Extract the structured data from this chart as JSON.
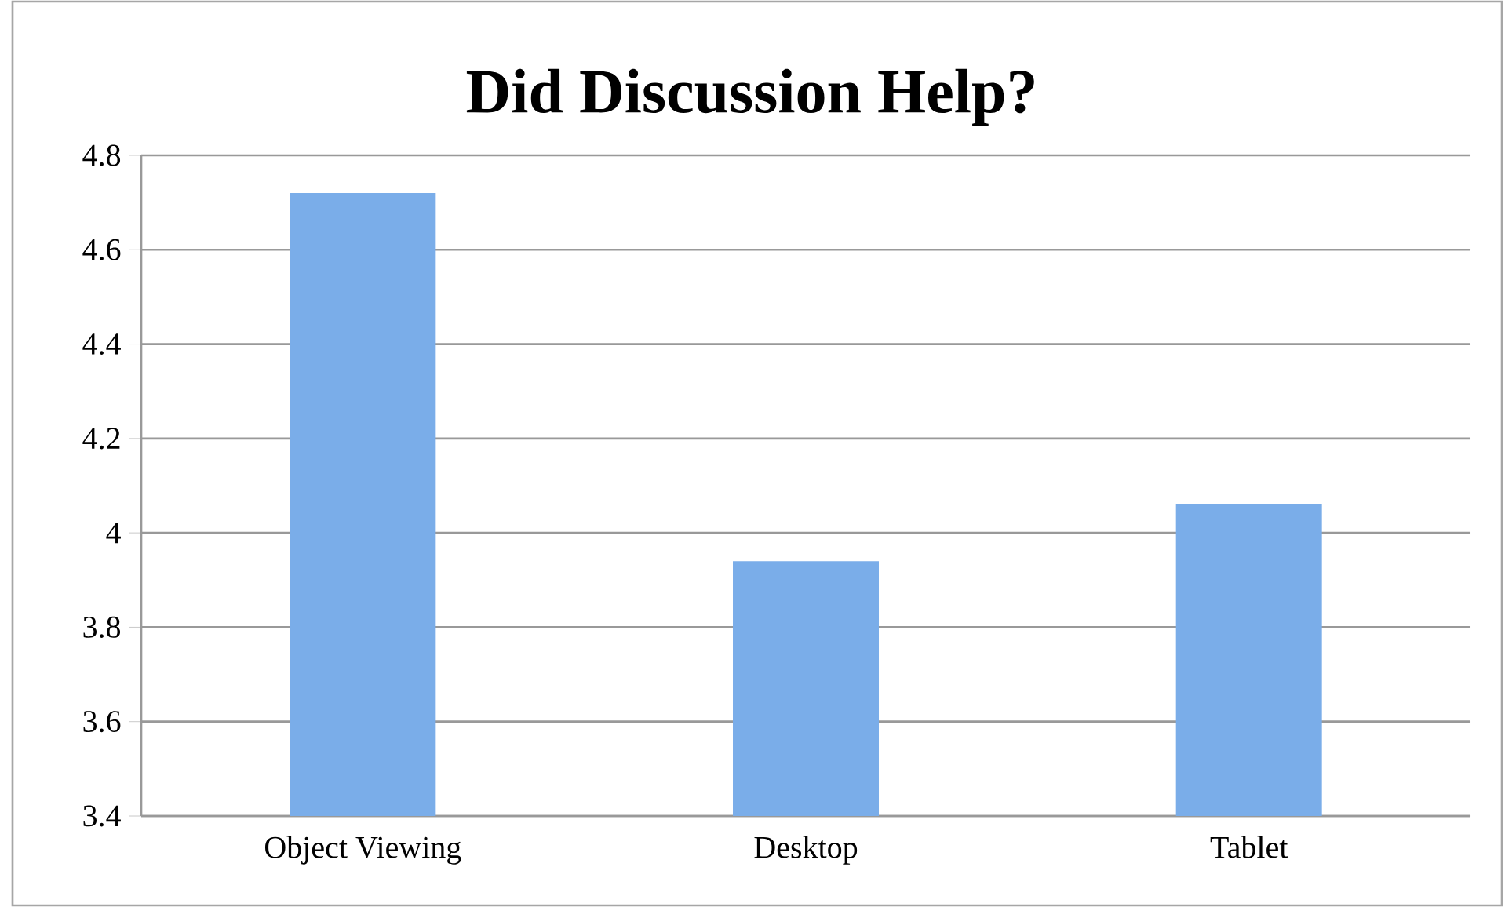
{
  "chart_data": {
    "type": "bar",
    "title": "Did Discussion Help?",
    "categories": [
      "Object Viewing",
      "Desktop",
      "Tablet"
    ],
    "values": [
      4.72,
      3.94,
      4.06
    ],
    "color": "#7aade9",
    "ylim": [
      3.4,
      4.8
    ],
    "yticks": [
      3.4,
      3.6,
      3.8,
      4,
      4.2,
      4.4,
      4.6,
      4.8
    ],
    "grid": "y"
  }
}
